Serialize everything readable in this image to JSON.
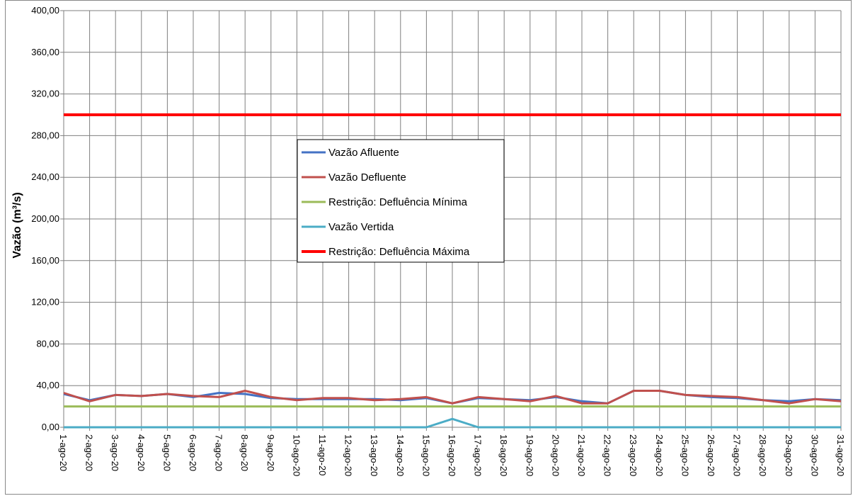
{
  "chart_data": {
    "type": "line",
    "ylabel": "Vazão (m³/s)",
    "xlabel": "",
    "title": "",
    "ylim": [
      0,
      400
    ],
    "y_ticks": [
      "0,00",
      "40,00",
      "80,00",
      "120,00",
      "160,00",
      "200,00",
      "240,00",
      "280,00",
      "320,00",
      "360,00",
      "400,00"
    ],
    "grid": true,
    "legend_position": "center",
    "categories": [
      "1-ago-20",
      "2-ago-20",
      "3-ago-20",
      "4-ago-20",
      "5-ago-20",
      "6-ago-20",
      "7-ago-20",
      "8-ago-20",
      "9-ago-20",
      "10-ago-20",
      "11-ago-20",
      "12-ago-20",
      "13-ago-20",
      "14-ago-20",
      "15-ago-20",
      "16-ago-20",
      "17-ago-20",
      "18-ago-20",
      "19-ago-20",
      "20-ago-20",
      "21-ago-20",
      "22-ago-20",
      "23-ago-20",
      "24-ago-20",
      "25-ago-20",
      "26-ago-20",
      "27-ago-20",
      "28-ago-20",
      "29-ago-20",
      "30-ago-20",
      "31-ago-20"
    ],
    "series": [
      {
        "name": "Vazão Afluente",
        "color": "#4472c4",
        "width": 3,
        "values": [
          32,
          26,
          31,
          30,
          32,
          29,
          33,
          32,
          28,
          27,
          27,
          27,
          27,
          26,
          28,
          23,
          28,
          27,
          26,
          29,
          25,
          23,
          35,
          35,
          31,
          29,
          28,
          26,
          25,
          27,
          26
        ]
      },
      {
        "name": "Vazão Defluente",
        "color": "#c0504d",
        "width": 3,
        "values": [
          33,
          25,
          31,
          30,
          32,
          30,
          29,
          35,
          29,
          26,
          28,
          28,
          26,
          27,
          29,
          23,
          29,
          27,
          25,
          30,
          23,
          23,
          35,
          35,
          31,
          30,
          29,
          26,
          23,
          27,
          25
        ]
      },
      {
        "name": "Restrição: Defluência Mínima",
        "color": "#9bbb59",
        "width": 3,
        "values": [
          20,
          20,
          20,
          20,
          20,
          20,
          20,
          20,
          20,
          20,
          20,
          20,
          20,
          20,
          20,
          20,
          20,
          20,
          20,
          20,
          20,
          20,
          20,
          20,
          20,
          20,
          20,
          20,
          20,
          20,
          20
        ]
      },
      {
        "name": "Vazão Vertida",
        "color": "#4bacc6",
        "width": 3,
        "values": [
          0,
          0,
          0,
          0,
          0,
          0,
          0,
          0,
          0,
          0,
          0,
          0,
          0,
          0,
          0,
          8,
          0,
          0,
          0,
          0,
          0,
          0,
          0,
          0,
          0,
          0,
          0,
          0,
          0,
          0,
          0
        ]
      },
      {
        "name": "Restrição: Defluência Máxima",
        "color": "#ff0000",
        "width": 4,
        "values": [
          300,
          300,
          300,
          300,
          300,
          300,
          300,
          300,
          300,
          300,
          300,
          300,
          300,
          300,
          300,
          300,
          300,
          300,
          300,
          300,
          300,
          300,
          300,
          300,
          300,
          300,
          300,
          300,
          300,
          300,
          300
        ]
      }
    ]
  }
}
